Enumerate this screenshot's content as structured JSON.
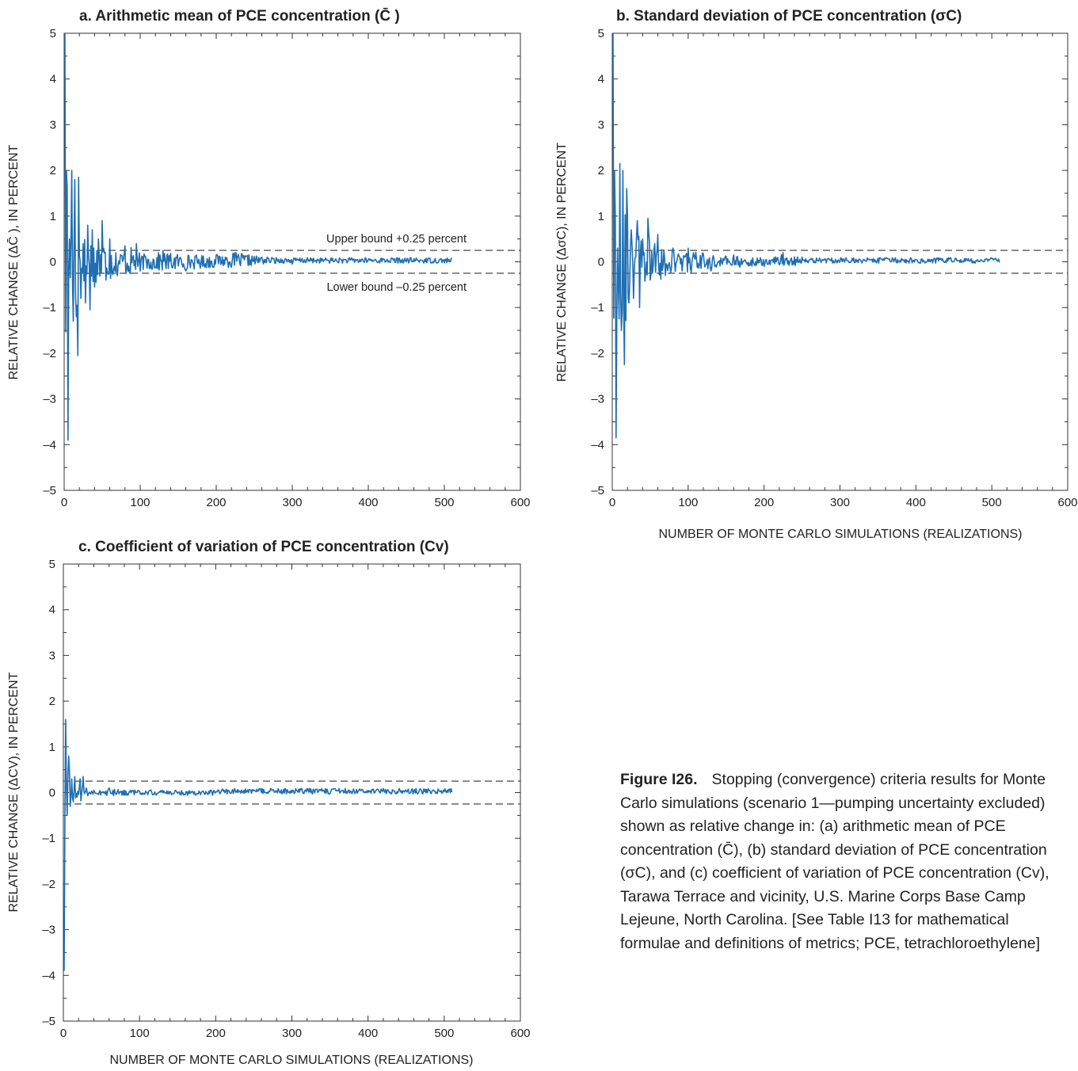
{
  "chart_data": [
    {
      "type": "line",
      "panel": "a",
      "title": "a.  Arithmetic mean of PCE concentration (C̄ )",
      "ylabel": "RELATIVE CHANGE (ΔC̄ ), IN PERCENT",
      "xlabel": "",
      "xlim": [
        0,
        600
      ],
      "ylim": [
        -5,
        5
      ],
      "xticks": [
        0,
        100,
        200,
        300,
        400,
        500,
        600
      ],
      "yticks": [
        -5,
        -4,
        -3,
        -2,
        -1,
        0,
        1,
        2,
        3,
        4,
        5
      ],
      "bounds": [
        0.25,
        -0.25
      ],
      "annotations": [
        "Upper bound +0.25 percent",
        "Lower bound –0.25 percent"
      ],
      "line_color": "#1f6fb2",
      "series": {
        "n_points": 510,
        "keypoints": [
          [
            1,
            5.0
          ],
          [
            3,
            2.0
          ],
          [
            5,
            -3.9
          ],
          [
            7,
            0.5
          ],
          [
            10,
            2.0
          ],
          [
            12,
            -1.3
          ],
          [
            14,
            1.8
          ],
          [
            16,
            -1.2
          ],
          [
            18,
            -2.05
          ],
          [
            19,
            1.85
          ],
          [
            22,
            -0.8
          ],
          [
            25,
            0.4
          ],
          [
            28,
            -0.9
          ],
          [
            31,
            0.8
          ],
          [
            34,
            -1.05
          ],
          [
            37,
            0.7
          ],
          [
            40,
            -0.55
          ],
          [
            45,
            0.5
          ],
          [
            50,
            0.9
          ],
          [
            55,
            -0.4
          ],
          [
            60,
            0.5
          ],
          [
            70,
            -0.3
          ],
          [
            80,
            0.35
          ],
          [
            95,
            0.4
          ],
          [
            100,
            -0.2
          ],
          [
            130,
            0.25
          ],
          [
            160,
            -0.2
          ],
          [
            200,
            0.15
          ],
          [
            225,
            0.2
          ],
          [
            260,
            0.1
          ],
          [
            300,
            -0.05
          ],
          [
            400,
            0.05
          ],
          [
            450,
            0.0
          ],
          [
            508,
            0.0
          ]
        ]
      }
    },
    {
      "type": "line",
      "panel": "b",
      "title": "b.  Standard deviation of PCE concentration (σC)",
      "ylabel": "RELATIVE CHANGE (ΔσC), IN PERCENT",
      "xlabel": "NUMBER OF MONTE CARLO SIMULATIONS (REALIZATIONS)",
      "xlim": [
        0,
        600
      ],
      "ylim": [
        -5,
        5
      ],
      "xticks": [
        0,
        100,
        200,
        300,
        400,
        500,
        600
      ],
      "yticks": [
        -5,
        -4,
        -3,
        -2,
        -1,
        0,
        1,
        2,
        3,
        4,
        5
      ],
      "bounds": [
        0.25,
        -0.25
      ],
      "line_color": "#1f6fb2",
      "series": {
        "n_points": 510,
        "keypoints": [
          [
            1,
            5.0
          ],
          [
            3,
            2.0
          ],
          [
            5,
            -3.85
          ],
          [
            7,
            0.3
          ],
          [
            10,
            2.15
          ],
          [
            12,
            -1.5
          ],
          [
            14,
            2.0
          ],
          [
            16,
            -2.25
          ],
          [
            19,
            1.6
          ],
          [
            22,
            -0.9
          ],
          [
            25,
            0.7
          ],
          [
            28,
            -0.8
          ],
          [
            33,
            0.9
          ],
          [
            36,
            -1.0
          ],
          [
            40,
            0.5
          ],
          [
            47,
            0.95
          ],
          [
            50,
            -0.4
          ],
          [
            60,
            0.6
          ],
          [
            70,
            -0.3
          ],
          [
            80,
            0.3
          ],
          [
            100,
            0.3
          ],
          [
            130,
            -0.2
          ],
          [
            160,
            0.15
          ],
          [
            200,
            -0.1
          ],
          [
            225,
            0.2
          ],
          [
            260,
            0.05
          ],
          [
            300,
            0.0
          ],
          [
            400,
            0.05
          ],
          [
            508,
            0.02
          ]
        ]
      }
    },
    {
      "type": "line",
      "panel": "c",
      "title": "c.  Coefficient of variation of PCE concentration (Cv)",
      "ylabel": "RELATIVE CHANGE (ΔCV), IN PERCENT",
      "xlabel": "NUMBER OF MONTE CARLO SIMULATIONS (REALIZATIONS)",
      "xlim": [
        0,
        600
      ],
      "ylim": [
        -5,
        5
      ],
      "xticks": [
        0,
        100,
        200,
        300,
        400,
        500,
        600
      ],
      "yticks": [
        -5,
        -4,
        -3,
        -2,
        -1,
        0,
        1,
        2,
        3,
        4,
        5
      ],
      "bounds": [
        0.25,
        -0.25
      ],
      "line_color": "#1f6fb2",
      "series": {
        "n_points": 510,
        "keypoints": [
          [
            1,
            -3.9
          ],
          [
            3,
            1.6
          ],
          [
            5,
            -0.5
          ],
          [
            7,
            0.8
          ],
          [
            9,
            -0.3
          ],
          [
            11,
            0.3
          ],
          [
            13,
            -0.2
          ],
          [
            15,
            0.35
          ],
          [
            18,
            -0.1
          ],
          [
            22,
            0.3
          ],
          [
            26,
            0.35
          ],
          [
            30,
            0.1
          ],
          [
            40,
            0.05
          ],
          [
            60,
            0.1
          ],
          [
            100,
            0.03
          ],
          [
            200,
            0.0
          ],
          [
            300,
            0.0
          ],
          [
            400,
            0.0
          ],
          [
            508,
            0.0
          ]
        ]
      }
    }
  ],
  "caption": {
    "figure_label": "Figure I26.",
    "text": "Stopping (convergence) criteria results for Monte Carlo simulations (scenario 1—pumping uncertainty excluded) shown as relative change in: (a) arithmetic mean of PCE concentration (C̄), (b) standard deviation of PCE concentration (σC), and (c) coefficient of variation of PCE concentration (Cv), Tarawa Terrace and vicinity, U.S. Marine Corps Base Camp Lejeune, North Carolina. [See Table I13 for mathematical formulae and definitions of metrics; PCE, tetrachloroethylene]"
  }
}
